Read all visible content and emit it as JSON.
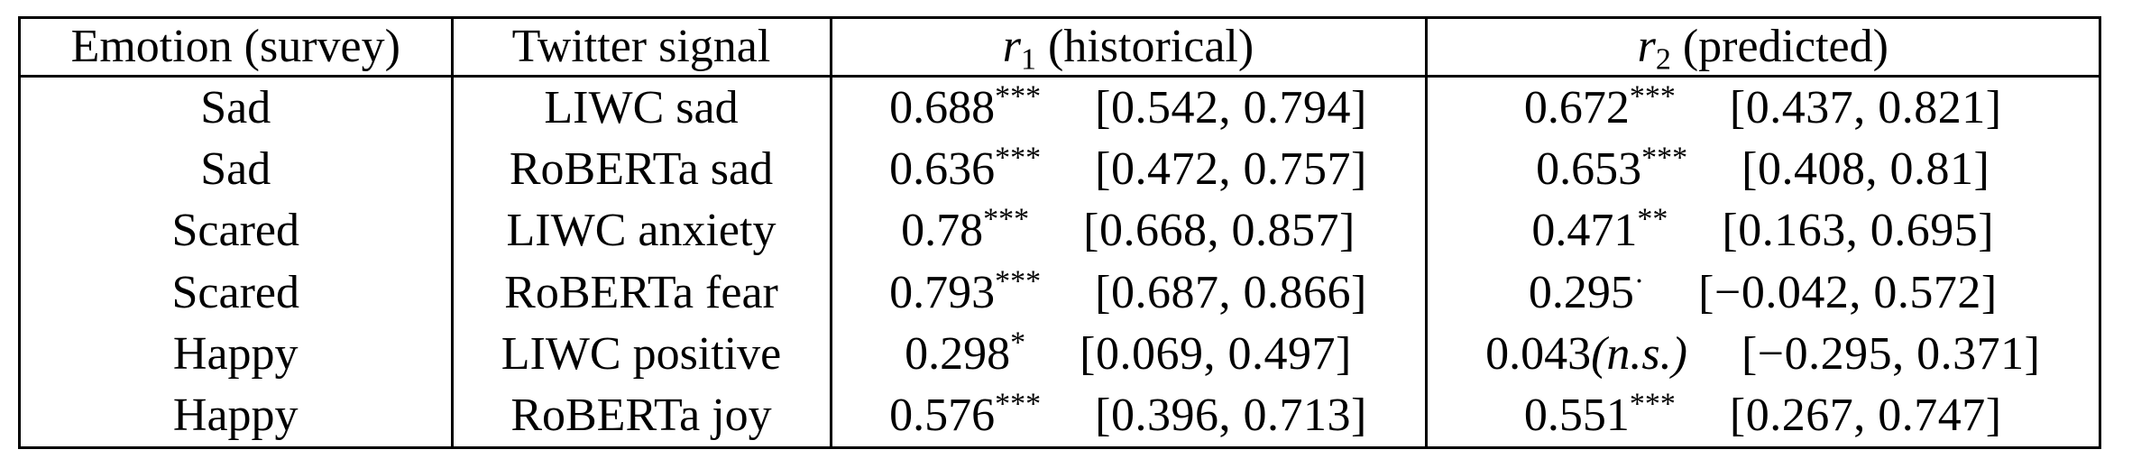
{
  "table": {
    "headers": {
      "emotion": "Emotion (survey)",
      "signal": "Twitter signal",
      "r1_symbol": "r",
      "r1_sub": "1",
      "r1_text": "(historical)",
      "r2_symbol": "r",
      "r2_sub": "2",
      "r2_text": "(predicted)"
    },
    "rows": [
      {
        "emotion": "Sad",
        "signal": "LIWC sad",
        "r1": "0.688",
        "r1_sig": "***",
        "r1_ci": "[0.542, 0.794]",
        "r2": "0.672",
        "r2_sig": "***",
        "r2_ci": "[0.437, 0.821]"
      },
      {
        "emotion": "Sad",
        "signal": "RoBERTa sad",
        "r1": "0.636",
        "r1_sig": "***",
        "r1_ci": "[0.472, 0.757]",
        "r2": "0.653",
        "r2_sig": "***",
        "r2_ci": "[0.408, 0.81]"
      },
      {
        "emotion": "Scared",
        "signal": "LIWC anxiety",
        "r1": "0.78",
        "r1_sig": "***",
        "r1_ci": "[0.668, 0.857]",
        "r2": "0.471",
        "r2_sig": "**",
        "r2_ci": "[0.163, 0.695]"
      },
      {
        "emotion": "Scared",
        "signal": "RoBERTa fear",
        "r1": "0.793",
        "r1_sig": "***",
        "r1_ci": "[0.687, 0.866]",
        "r2": "0.295",
        "r2_sig": "·",
        "r2_ci": "[−0.042, 0.572]"
      },
      {
        "emotion": "Happy",
        "signal": "LIWC positive",
        "r1": "0.298",
        "r1_sig": "*",
        "r1_ci": "[0.069, 0.497]",
        "r2": "0.043",
        "r2_sig": "",
        "r2_ns": "(n.s.)",
        "r2_ci": "[−0.295, 0.371]"
      },
      {
        "emotion": "Happy",
        "signal": "RoBERTa joy",
        "r1": "0.576",
        "r1_sig": "***",
        "r1_ci": "[0.396, 0.713]",
        "r2": "0.551",
        "r2_sig": "***",
        "r2_ci": "[0.267, 0.747]"
      }
    ]
  }
}
